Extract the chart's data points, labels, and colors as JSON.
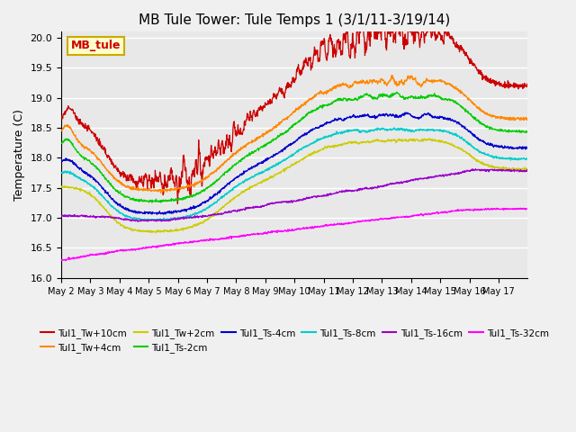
{
  "title": "MB Tule Tower: Tule Temps 1 (3/1/11-3/19/14)",
  "ylabel": "Temperature (C)",
  "ylim": [
    16.0,
    20.1
  ],
  "xlim": [
    0,
    16
  ],
  "xtick_labels": [
    "May 2",
    "May 3",
    "May 4",
    "May 5",
    "May 6",
    "May 7",
    "May 8",
    "May 9",
    "May 10",
    "May 11",
    "May 12",
    "May 13",
    "May 14",
    "May 15",
    "May 16",
    "May 17"
  ],
  "ytick_vals": [
    16.0,
    16.5,
    17.0,
    17.5,
    18.0,
    18.5,
    19.0,
    19.5,
    20.0
  ],
  "background_color": "#e8e8e8",
  "grid_color": "#ffffff",
  "series_colors": {
    "Tul1_Tw+10cm": "#cc0000",
    "Tul1_Tw+4cm": "#ff8800",
    "Tul1_Tw+2cm": "#cccc00",
    "Tul1_Ts-2cm": "#00cc00",
    "Tul1_Ts-4cm": "#0000cc",
    "Tul1_Ts-8cm": "#00cccc",
    "Tul1_Ts-16cm": "#9900cc",
    "Tul1_Ts-32cm": "#ff00ff"
  },
  "annotation_text": "MB_tule",
  "annotation_color": "#cc0000",
  "annotation_bg": "#ffffcc",
  "annotation_border": "#ccaa00"
}
